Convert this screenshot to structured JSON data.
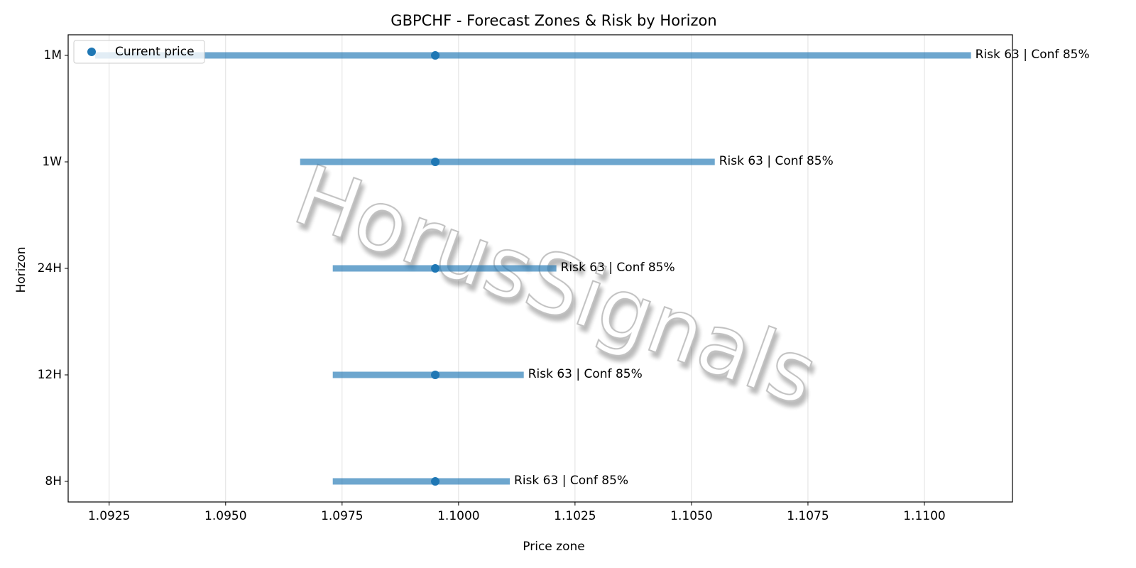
{
  "chart_data": {
    "type": "range",
    "title": "GBPCHF - Forecast Zones & Risk by Horizon",
    "x_label": "Price zone",
    "y_label": "Horizon",
    "watermark": "HorusSignals",
    "categories": [
      "8H",
      "12H",
      "24H",
      "1W",
      "1M"
    ],
    "lows": [
      1.0973,
      1.0973,
      1.0973,
      1.0966,
      1.0922
    ],
    "highs": [
      1.1011,
      1.1014,
      1.1021,
      1.1055,
      1.111
    ],
    "range_color": "#1f77b4",
    "annotations": [
      "Risk 63 | Conf 85%",
      "Risk 63 | Conf 85%",
      "Risk 63 | Conf 85%",
      "Risk 63 | Conf 85%",
      "Risk 63 | Conf 85%"
    ],
    "series": [
      {
        "name": "Current price",
        "color": "#1f77b4",
        "values": [
          1.0995,
          1.0995,
          1.0995,
          1.0995,
          1.0995
        ]
      }
    ],
    "xlim": [
      1.09162,
      1.11189
    ],
    "xticks": [
      1.0925,
      {
        "value": 1.095,
        "label": "1.0950"
      },
      1.0975,
      {
        "value": 1.1,
        "label": "1.1000"
      },
      1.1025,
      {
        "value": 1.105,
        "label": "1.1050"
      },
      1.1075,
      {
        "value": 1.11,
        "label": "1.1100"
      }
    ],
    "grid": true,
    "legend": "upper left"
  }
}
